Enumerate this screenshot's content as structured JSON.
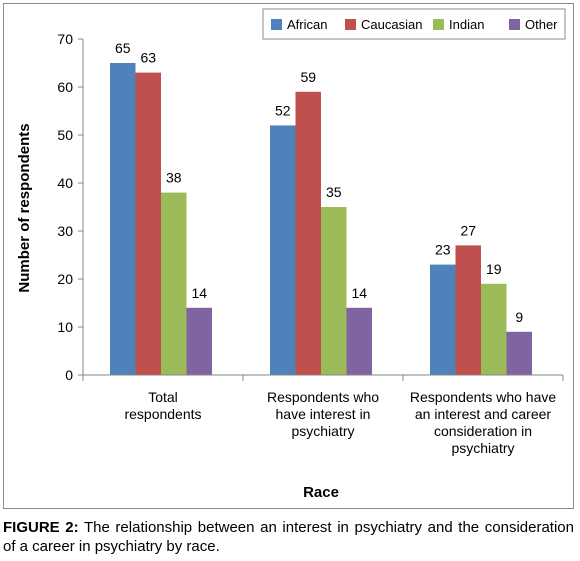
{
  "chart_data": {
    "type": "bar",
    "categories": [
      [
        "Total",
        "respondents"
      ],
      [
        "Respondents who",
        "have interest in",
        "psychiatry"
      ],
      [
        "Respondents who have",
        "an interest and career",
        "consideration in",
        "psychiatry"
      ]
    ],
    "series": [
      {
        "name": "African",
        "color": "#4f81bd",
        "values": [
          65,
          52,
          23
        ]
      },
      {
        "name": "Caucasian",
        "color": "#c0504d",
        "values": [
          63,
          59,
          27
        ]
      },
      {
        "name": "Indian",
        "color": "#9bbb59",
        "values": [
          38,
          35,
          19
        ]
      },
      {
        "name": "Other",
        "color": "#8064a2",
        "values": [
          14,
          14,
          9
        ]
      }
    ],
    "xlabel": "Race",
    "ylabel": "Number of respondents",
    "ylim": [
      0,
      70
    ],
    "yticks": [
      0,
      10,
      20,
      30,
      40,
      50,
      60,
      70
    ],
    "grid": false,
    "legend_position": "top-right",
    "data_labels": true
  },
  "caption": {
    "label": "FIGURE 2:",
    "text": " The relationship between an interest in psychiatry and the consideration of a career in psychiatry by race."
  }
}
